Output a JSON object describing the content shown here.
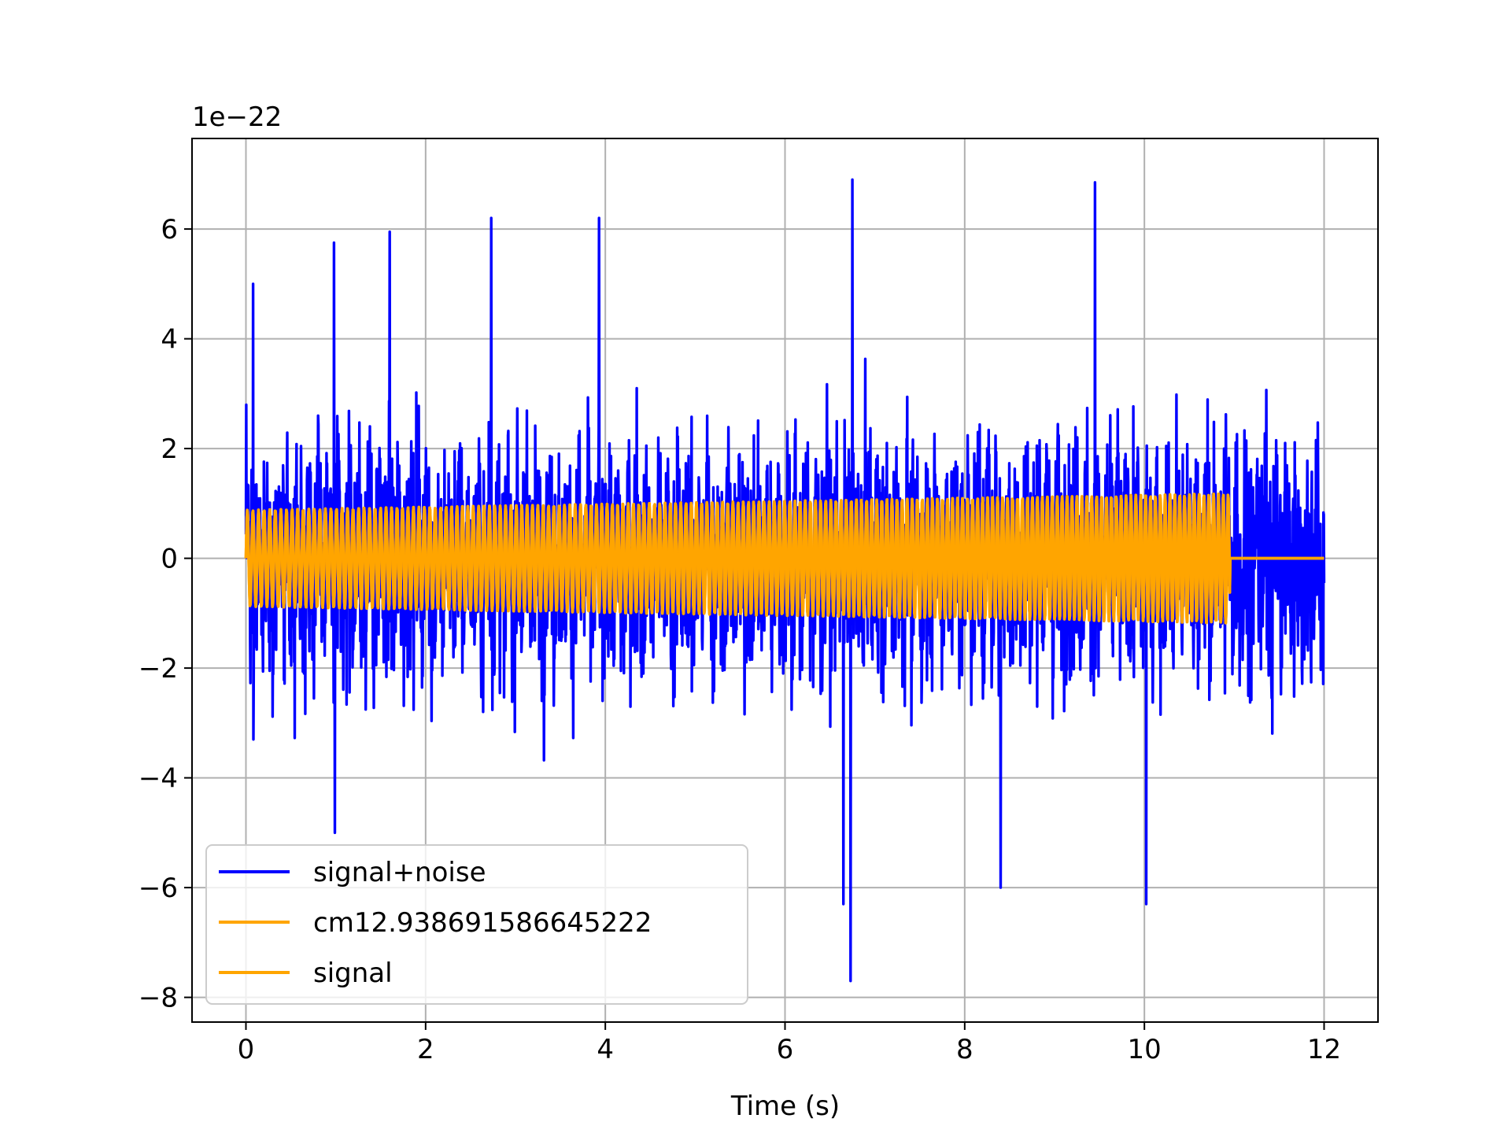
{
  "chart_data": {
    "type": "line",
    "title": "",
    "xlabel": "Time (s)",
    "ylabel": "",
    "y_offset_label": "1e−22",
    "y_scale_exponent": -22,
    "xlim": [
      -0.6,
      12.6
    ],
    "ylim": [
      -8.45,
      7.65
    ],
    "x_ticks": [
      0,
      2,
      4,
      6,
      8,
      10,
      12
    ],
    "x_tick_labels": [
      "0",
      "2",
      "4",
      "6",
      "8",
      "10",
      "12"
    ],
    "y_ticks": [
      -8,
      -6,
      -4,
      -2,
      0,
      2,
      4,
      6
    ],
    "y_tick_labels": [
      "−8",
      "−6",
      "−4",
      "−2",
      "0",
      "2",
      "4",
      "6"
    ],
    "grid": true,
    "legend_position": "lower-left",
    "series": [
      {
        "name": "signal+noise",
        "color": "#0000ff",
        "description_time_range_s": [
          0,
          12
        ],
        "approx_envelope_1e-22": {
          "typical_min": -4.5,
          "typical_max": 4.5,
          "peak_max": 6.9,
          "peak_min": -7.7
        },
        "notable_peaks": [
          {
            "x": 6.75,
            "y": 6.9
          },
          {
            "x": 9.45,
            "y": 6.85
          },
          {
            "x": 2.73,
            "y": 6.2
          },
          {
            "x": 3.93,
            "y": 6.2
          },
          {
            "x": 1.6,
            "y": 5.95
          },
          {
            "x": 0.98,
            "y": 5.75
          },
          {
            "x": 0.08,
            "y": 5.0
          },
          {
            "x": 6.73,
            "y": -7.7
          },
          {
            "x": 6.65,
            "y": -6.3
          },
          {
            "x": 10.02,
            "y": -6.3
          },
          {
            "x": 0.99,
            "y": -5.0
          },
          {
            "x": 8.4,
            "y": -6.0
          }
        ]
      },
      {
        "name": "cm12.938691586645222",
        "color": "#ffa500",
        "description_time_range_s": [
          0,
          12
        ],
        "amplitude_1e-22": {
          "start": 0.88,
          "end": 1.18
        },
        "cutoff_time_s": 10.95
      },
      {
        "name": "signal",
        "color": "#ffa500",
        "description_time_range_s": [
          0,
          12
        ],
        "amplitude_1e-22": {
          "start": 0.88,
          "end": 1.18
        },
        "cutoff_time_s": 10.95
      }
    ]
  }
}
